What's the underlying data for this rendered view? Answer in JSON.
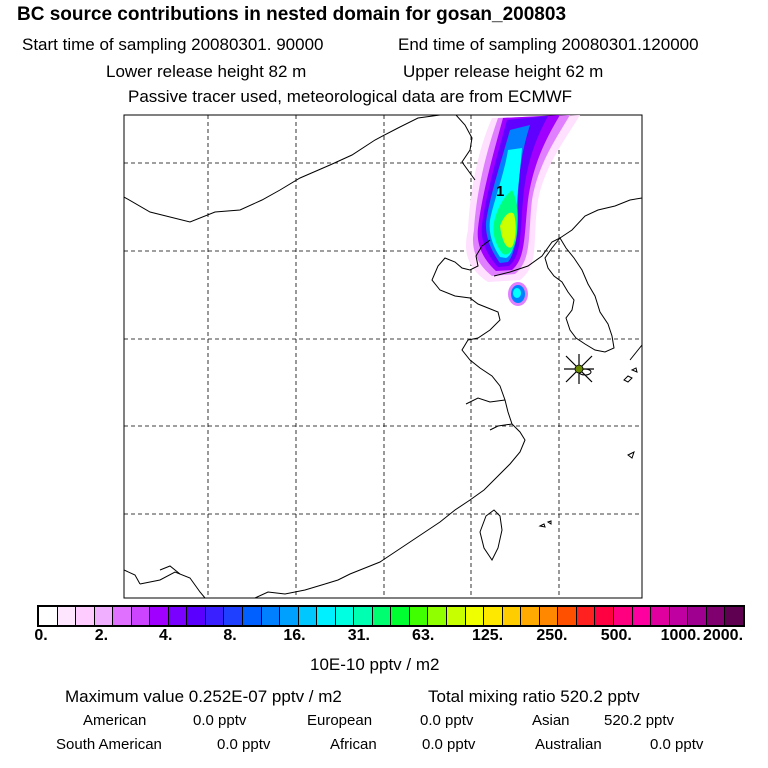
{
  "header": {
    "title": "BC  source contributions in nested domain for gosan_200803",
    "start_label": "Start time of sampling 20080301. 90000",
    "end_label": "End time of sampling 20080301.120000",
    "lower_label": "Lower release height   82 m",
    "upper_label": "Upper release height   62 m",
    "tracer_note": "Passive tracer used, meteorological data are from ECMWF"
  },
  "map": {
    "point_label": "1",
    "receptor_marker": "asterisk-star-icon",
    "grid_style": "dashed",
    "plume_colors": [
      "#ffe0ff",
      "#e080ff",
      "#a000ff",
      "#6000ff",
      "#0080ff",
      "#00ffff",
      "#00ff80",
      "#ccff00"
    ]
  },
  "colorbar": {
    "ticks": [
      "0.",
      "2.",
      "4.",
      "8.",
      "16.",
      "31.",
      "63.",
      "125.",
      "250.",
      "500.",
      "1000.",
      "2000."
    ],
    "colors": [
      "#ffffff",
      "#ffe6ff",
      "#ffccff",
      "#f0b0ff",
      "#e070ff",
      "#cc44ff",
      "#a000ff",
      "#7a00ff",
      "#5a00ff",
      "#3a20ff",
      "#2040ff",
      "#0060ff",
      "#0080ff",
      "#00a0ff",
      "#00c8ff",
      "#00f0ff",
      "#00ffe0",
      "#00ffb0",
      "#00ff70",
      "#00ff30",
      "#40ff00",
      "#90ff00",
      "#c8ff00",
      "#f0ff00",
      "#ffe800",
      "#ffcc00",
      "#ffaa00",
      "#ff8800",
      "#ff5000",
      "#ff2020",
      "#ff0040",
      "#ff0080",
      "#ff00a0",
      "#e000a0",
      "#c000a0",
      "#a00090",
      "#800070",
      "#600050"
    ],
    "unit_label": "10E-10 pptv / m2"
  },
  "summary": {
    "max_value": "Maximum value  0.252E-07 pptv / m2",
    "total_mixing": "Total mixing ratio       520.2  pptv",
    "regions": [
      {
        "name": "American",
        "value": "0.0 pptv"
      },
      {
        "name": "European",
        "value": "0.0 pptv"
      },
      {
        "name": "Asian",
        "value": "520.2 pptv"
      },
      {
        "name": "South American",
        "value": "0.0 pptv"
      },
      {
        "name": "African",
        "value": "0.0 pptv"
      },
      {
        "name": "Australian",
        "value": "0.0 pptv"
      }
    ]
  }
}
